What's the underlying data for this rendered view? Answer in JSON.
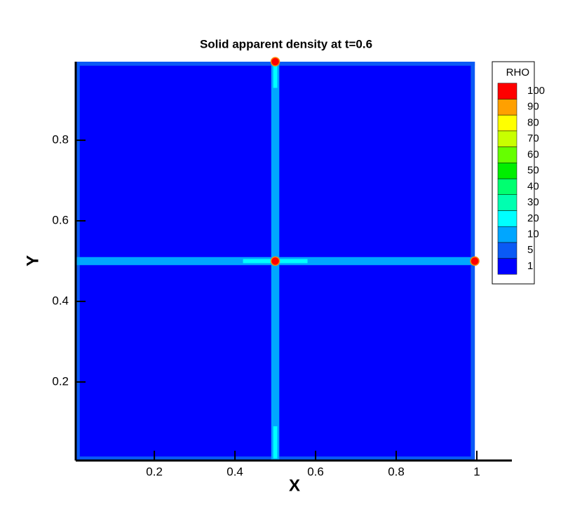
{
  "chart_data": {
    "type": "contour",
    "title": "Solid apparent density at t=0.6",
    "x_label": "X",
    "y_label": "Y",
    "xlim": [
      0.005,
      1.087
    ],
    "ylim": [
      0.005,
      0.995
    ],
    "xticks": [
      0.2,
      0.4,
      0.6,
      0.8,
      1
    ],
    "yticks": [
      0.2,
      0.4,
      0.6,
      0.8
    ],
    "legend_title": "RHO",
    "levels": [
      1,
      5,
      10,
      20,
      30,
      40,
      50,
      60,
      70,
      80,
      90,
      100
    ],
    "colors": [
      "#0000ff",
      "#0a5af5",
      "#00a6ff",
      "#00ffff",
      "#00ffb0",
      "#00ff70",
      "#00ee00",
      "#66ff00",
      "#c8ff00",
      "#ffff00",
      "#ffa000",
      "#ff5000"
    ],
    "top_color": "#ff0000",
    "cells": [
      {
        "x": [
          0.005,
          0.995
        ],
        "y": [
          0.005,
          0.995
        ],
        "value": 1
      },
      {
        "x": [
          0.005,
          0.995
        ],
        "y": [
          0.985,
          0.995
        ],
        "value": 5
      },
      {
        "x": [
          0.005,
          0.995
        ],
        "y": [
          0.005,
          0.015
        ],
        "value": 5
      },
      {
        "x": [
          0.005,
          0.015
        ],
        "y": [
          0.005,
          0.995
        ],
        "value": 5
      },
      {
        "x": [
          0.985,
          0.995
        ],
        "y": [
          0.005,
          0.995
        ],
        "value": 5
      },
      {
        "x": [
          0.49,
          0.51
        ],
        "y": [
          0.005,
          0.995
        ],
        "value": 10
      },
      {
        "x": [
          0.005,
          0.995
        ],
        "y": [
          0.49,
          0.51
        ],
        "value": 10
      },
      {
        "x": [
          0.42,
          0.58
        ],
        "y": [
          0.495,
          0.505
        ],
        "value": 20
      },
      {
        "x": [
          0.495,
          0.505
        ],
        "y": [
          0.93,
          0.99
        ],
        "value": 20
      },
      {
        "x": [
          0.495,
          0.505
        ],
        "y": [
          0.01,
          0.09
        ],
        "value": 20
      }
    ],
    "points": [
      {
        "x": 0.5,
        "y": 0.5,
        "value": 100
      },
      {
        "x": 0.5,
        "y": 0.995,
        "value": 100
      },
      {
        "x": 0.995,
        "y": 0.5,
        "value": 100
      }
    ]
  }
}
